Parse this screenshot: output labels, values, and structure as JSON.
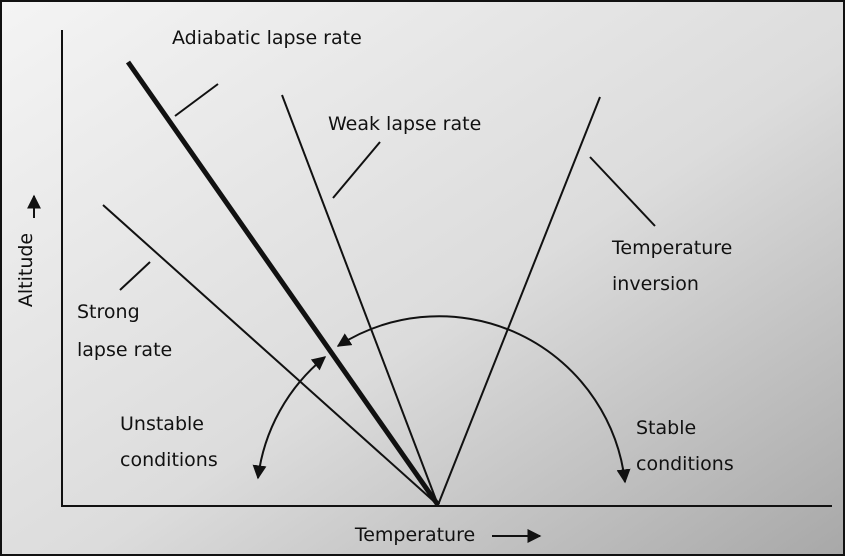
{
  "axes": {
    "y_label": "Altitude",
    "x_label": "Temperature"
  },
  "lines": [
    {
      "label": [
        "Adiabatic lapse rate"
      ]
    },
    {
      "label": [
        "Weak lapse rate"
      ]
    },
    {
      "label": [
        "Strong",
        "lapse rate"
      ]
    },
    {
      "label": [
        "Temperature",
        "inversion"
      ]
    }
  ],
  "regions": [
    {
      "label": [
        "Unstable",
        "conditions"
      ]
    },
    {
      "label": [
        "Stable",
        "conditions"
      ]
    }
  ]
}
